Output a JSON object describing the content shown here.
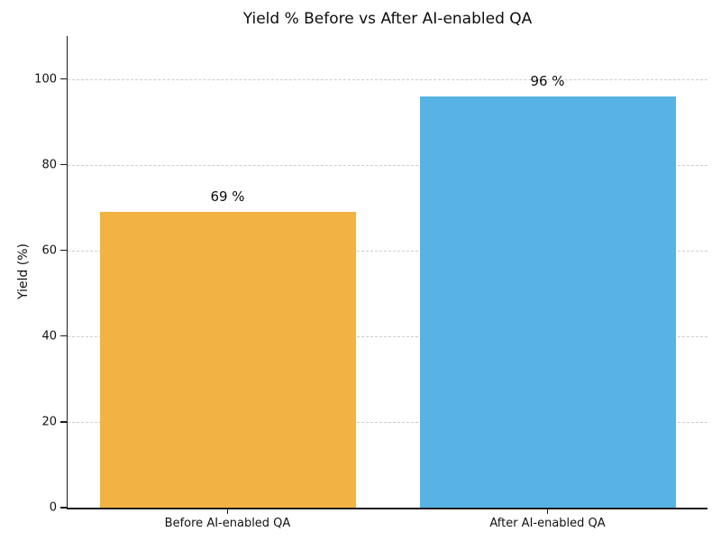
{
  "chart_data": {
    "type": "bar",
    "title": "Yield % Before vs After AI-enabled QA",
    "categories": [
      "Before AI-enabled QA",
      "After AI-enabled QA"
    ],
    "values": [
      69,
      96
    ],
    "value_labels": [
      "69 %",
      "96 %"
    ],
    "bar_colors": [
      "#F2B344",
      "#56B3E4"
    ],
    "xlabel": "",
    "ylabel": "Yield (%)",
    "ylim": [
      0,
      110
    ],
    "yticks": [
      0,
      20,
      40,
      60,
      80,
      100
    ],
    "grid": "horizontal dashed",
    "gridline_color": "#cccccc",
    "legend": "none",
    "bar_width_fraction": 0.8
  }
}
